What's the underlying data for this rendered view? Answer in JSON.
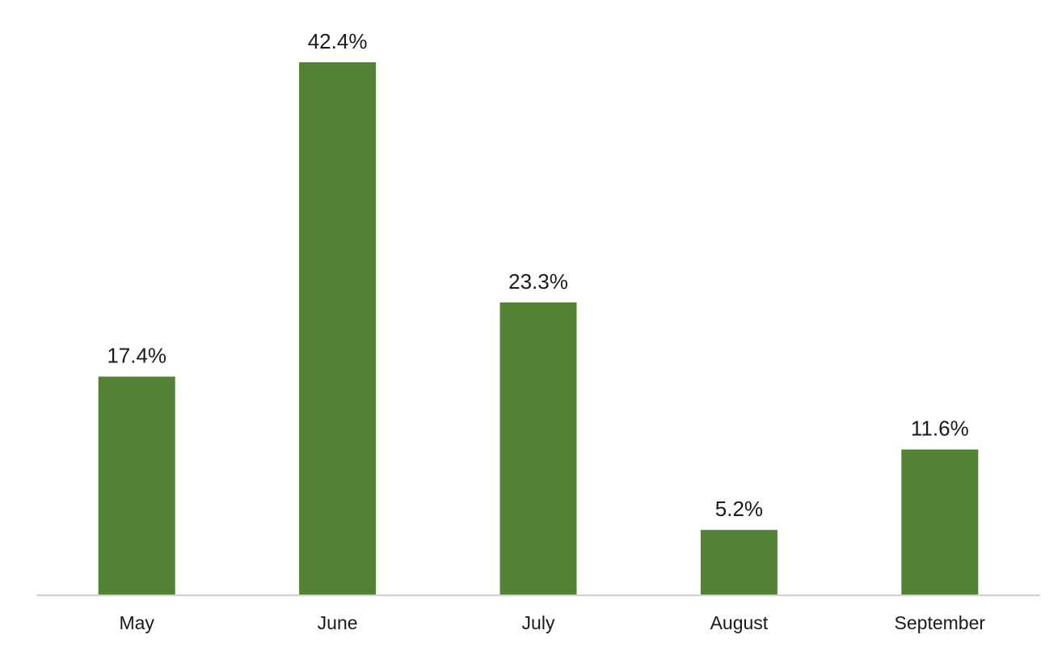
{
  "chart_data": {
    "type": "bar",
    "categories": [
      "May",
      "June",
      "July",
      "August",
      "September"
    ],
    "values": [
      17.4,
      42.4,
      23.3,
      5.2,
      11.6
    ],
    "data_labels": [
      "17.4%",
      "42.4%",
      "23.3%",
      "5.2%",
      "11.6%"
    ],
    "ylim": [
      0,
      42.4
    ],
    "grid": false,
    "legend": "none",
    "bar_color": "#548235"
  }
}
